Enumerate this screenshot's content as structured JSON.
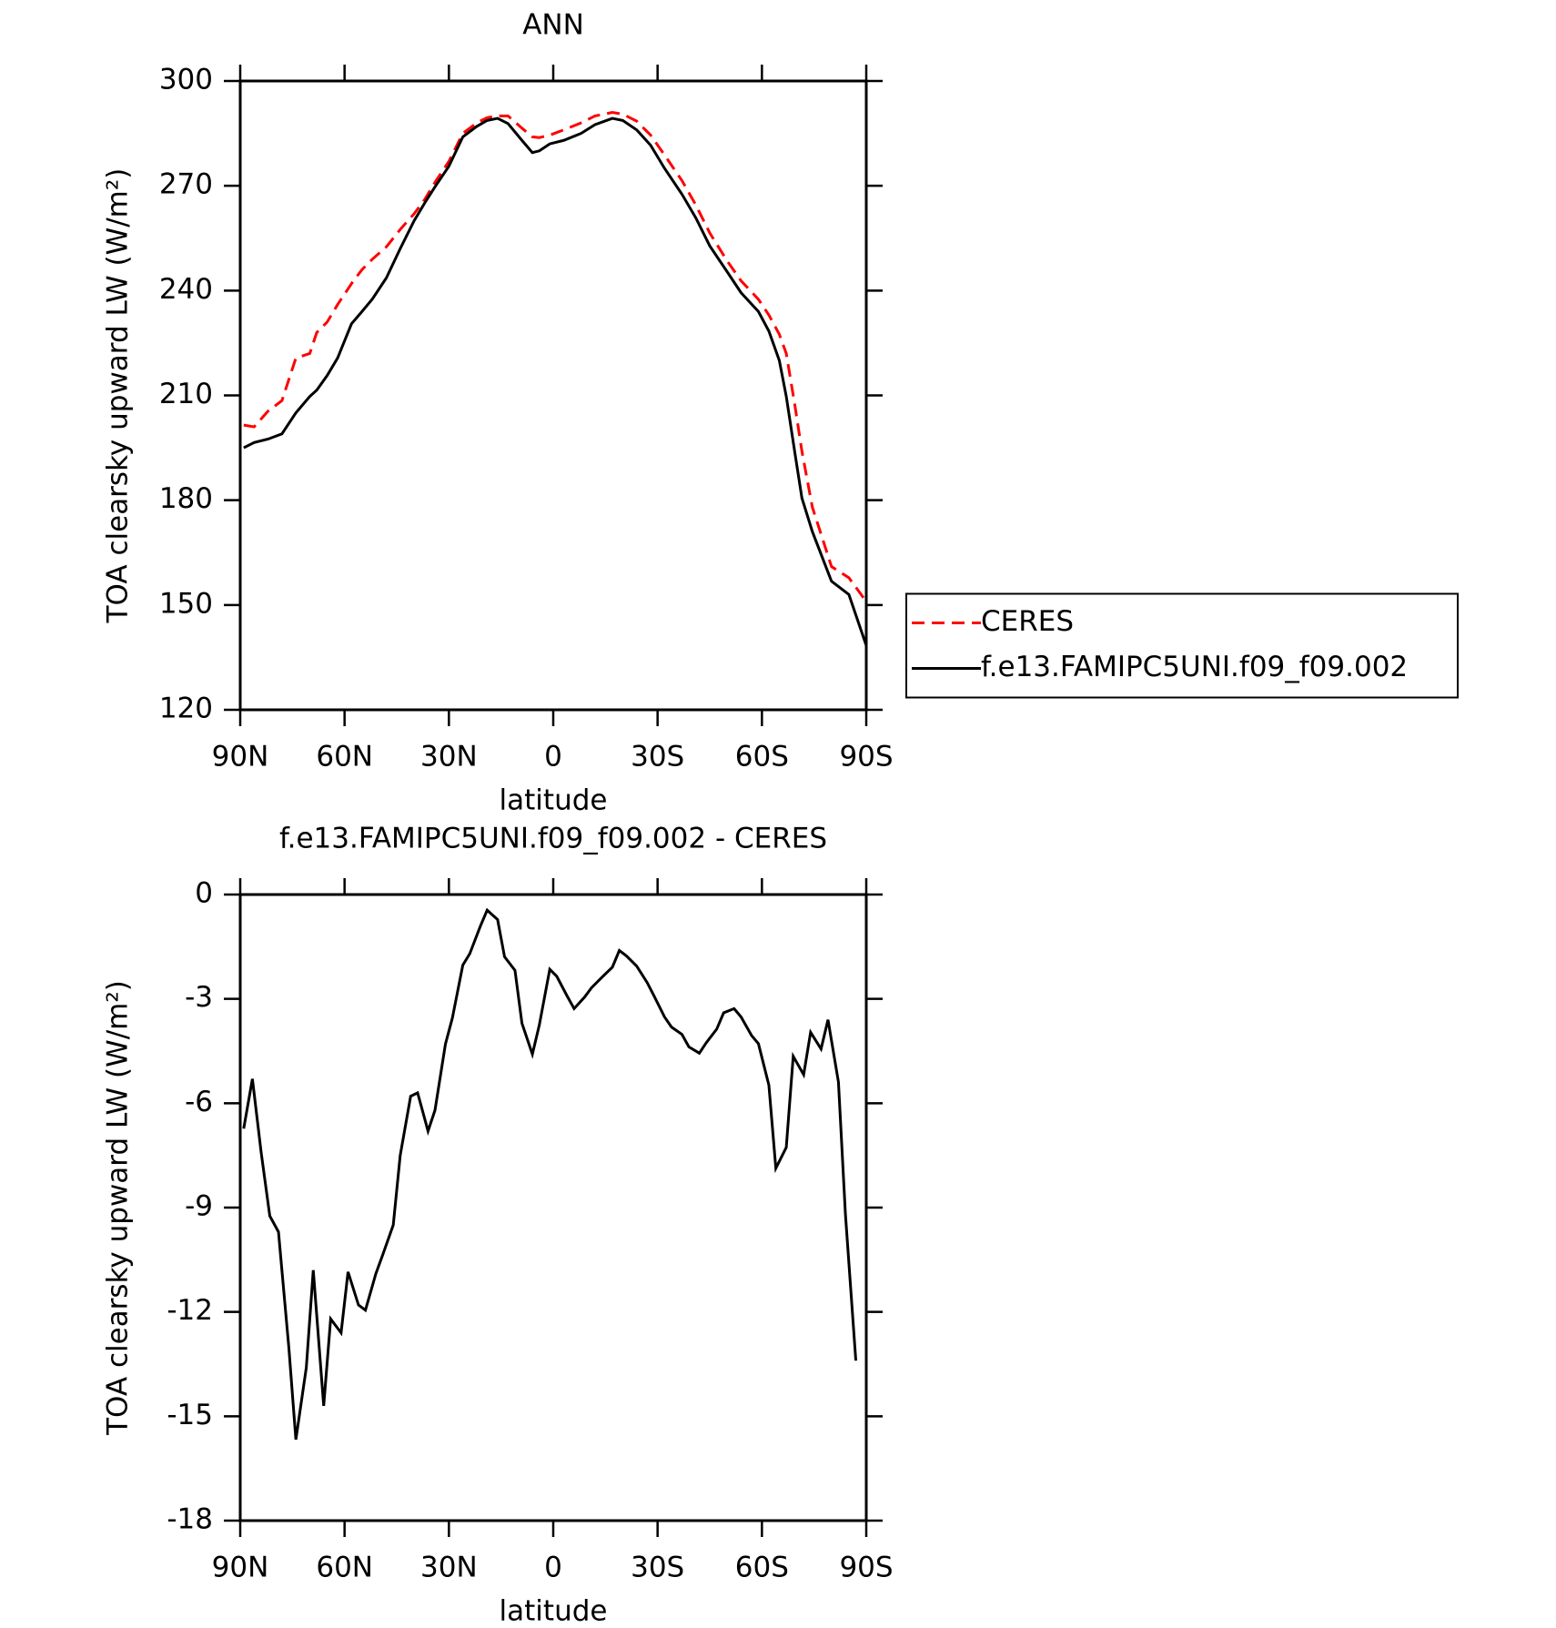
{
  "chart_data": [
    {
      "type": "line",
      "title": "ANN",
      "xlabel": "latitude",
      "ylabel": "TOA clearsky upward LW (W/m²)",
      "x": [
        89,
        86,
        82,
        78,
        74,
        70,
        68,
        65,
        62,
        58,
        55,
        52,
        48,
        44,
        40,
        37,
        34,
        30,
        26,
        22,
        19,
        16,
        13,
        9,
        6,
        4,
        1,
        -3,
        -8,
        -12,
        -17,
        -20,
        -24,
        -28,
        -32,
        -37,
        -41,
        -45,
        -50,
        -54,
        -59,
        -62,
        -65,
        -67,
        -69.5,
        -71.5,
        -74.5,
        -80,
        -85,
        -90
      ],
      "series": [
        {
          "name": "CERES",
          "color": "#ff0000",
          "dash": true,
          "values": [
            201.5,
            201,
            205.5,
            208.5,
            220.7,
            222,
            228,
            231,
            236,
            242,
            246,
            249,
            252.5,
            257.5,
            262,
            266,
            271,
            277,
            285,
            288,
            289.5,
            290,
            290,
            286.5,
            284,
            283.8,
            284.5,
            286,
            288,
            290,
            291,
            290.5,
            288.5,
            284.5,
            278.8,
            271.5,
            264.5,
            256.5,
            248.5,
            242.8,
            237.5,
            233,
            227.5,
            222,
            207,
            194,
            178,
            161,
            157.8,
            151
          ]
        },
        {
          "name": "f.e13.FAMIPC5UNI.f09_f09.002",
          "color": "#000000",
          "dash": false,
          "values": [
            195,
            196.5,
            197.5,
            199,
            205,
            209.7,
            211.5,
            215.7,
            220.7,
            230.5,
            234,
            237.6,
            243.6,
            252,
            260,
            265,
            269.7,
            275.6,
            284,
            287,
            288.7,
            289.3,
            287.8,
            283,
            279.5,
            280,
            282,
            283,
            285,
            287.5,
            289.3,
            288.7,
            286,
            281.6,
            275,
            267.6,
            260.8,
            252.8,
            245.4,
            239.4,
            234,
            228.4,
            220,
            209.7,
            193.4,
            180.6,
            171,
            156.8,
            153,
            138.4
          ]
        }
      ],
      "xlim": [
        90,
        -90
      ],
      "xticks": [
        {
          "value": 90,
          "label": "90N"
        },
        {
          "value": 60,
          "label": "60N"
        },
        {
          "value": 30,
          "label": "30N"
        },
        0,
        {
          "value": -30,
          "label": "30S"
        },
        {
          "value": -60,
          "label": "60S"
        },
        {
          "value": -90,
          "label": "90S"
        }
      ],
      "ylim": [
        120,
        300
      ],
      "yticks": [
        120,
        150,
        180,
        210,
        240,
        270,
        300
      ],
      "legend": "right"
    },
    {
      "type": "line",
      "title": "f.e13.FAMIPC5UNI.f09_f09.002 - CERES",
      "xlabel": "latitude",
      "ylabel": "TOA clearsky upward LW (W/m²)",
      "x": [
        89,
        86.5,
        84,
        81.5,
        79,
        76,
        74,
        71,
        69,
        66,
        64,
        61,
        59,
        56,
        54,
        51,
        49,
        46,
        44,
        41,
        39,
        36,
        34,
        31,
        29,
        26,
        24,
        21,
        19,
        16,
        14,
        11,
        9,
        6,
        4,
        1,
        -1,
        -4,
        -6,
        -9,
        -11,
        -14,
        -17,
        -19,
        -21,
        -24,
        -27,
        -29,
        -32,
        -34,
        -37,
        -39,
        -42,
        -44,
        -47,
        -49,
        -52,
        -54,
        -57,
        -59,
        -62,
        -64,
        -67,
        -69,
        -72,
        -74,
        -77,
        -79,
        -82,
        -84,
        -87
      ],
      "values": [
        -6.73,
        -5.3,
        -7.4,
        -9.24,
        -9.7,
        -13.05,
        -15.67,
        -13.6,
        -10.8,
        -14.7,
        -12.2,
        -12.6,
        -10.85,
        -11.8,
        -11.95,
        -10.9,
        -10.35,
        -9.5,
        -7.5,
        -5.8,
        -5.7,
        -6.8,
        -6.2,
        -4.3,
        -3.55,
        -2.03,
        -1.7,
        -0.92,
        -0.45,
        -0.72,
        -1.79,
        -2.18,
        -3.7,
        -4.59,
        -3.75,
        -2.15,
        -2.35,
        -2.92,
        -3.28,
        -2.95,
        -2.68,
        -2.38,
        -2.09,
        -1.61,
        -1.76,
        -2.06,
        -2.53,
        -2.92,
        -3.52,
        -3.81,
        -4.02,
        -4.38,
        -4.56,
        -4.26,
        -3.87,
        -3.4,
        -3.28,
        -3.52,
        -4.05,
        -4.29,
        -5.48,
        -7.87,
        -7.27,
        -4.65,
        -5.18,
        -3.96,
        -4.44,
        -3.6,
        -5.39,
        -9.18,
        -13.4
      ],
      "color": "#000000",
      "xlim": [
        90,
        -90
      ],
      "xticks": [
        {
          "value": 90,
          "label": "90N"
        },
        {
          "value": 60,
          "label": "60N"
        },
        {
          "value": 30,
          "label": "30N"
        },
        0,
        {
          "value": -30,
          "label": "30S"
        },
        {
          "value": -60,
          "label": "60S"
        },
        {
          "value": -90,
          "label": "90S"
        }
      ],
      "ylim": [
        -18,
        0
      ],
      "yticks": [
        -18,
        -15,
        -12,
        -9,
        -6,
        -3,
        0
      ]
    }
  ]
}
